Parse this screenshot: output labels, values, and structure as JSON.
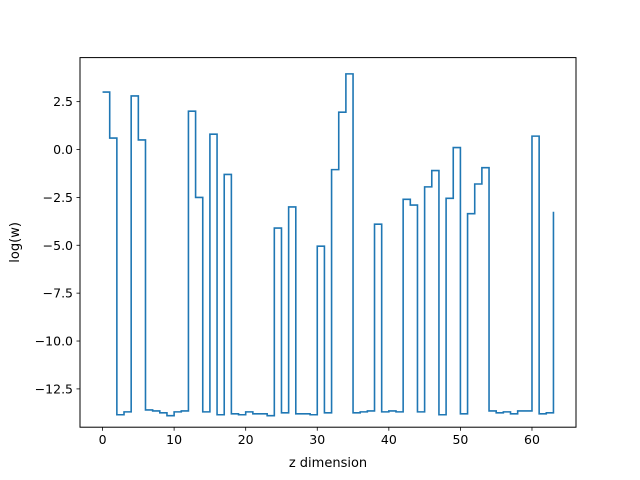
{
  "chart_data": {
    "type": "line",
    "drawstyle": "steps-post",
    "xlabel": "z dimension",
    "ylabel": "log(w)",
    "xlim": [
      -3.15,
      66.15
    ],
    "ylim": [
      -14.5,
      4.8
    ],
    "xticks": [
      0,
      10,
      20,
      30,
      40,
      50,
      60
    ],
    "xtick_labels": [
      "0",
      "10",
      "20",
      "30",
      "40",
      "50",
      "60"
    ],
    "yticks": [
      -12.5,
      -10.0,
      -7.5,
      -5.0,
      -2.5,
      0.0,
      2.5
    ],
    "ytick_labels": [
      "−12.5",
      "−10.0",
      "−7.5",
      "−5.0",
      "−2.5",
      "0.0",
      "2.5"
    ],
    "grid": false,
    "color": "#1f77b4",
    "series": [
      {
        "x": [
          0,
          1,
          2,
          3,
          4,
          5,
          6,
          7,
          8,
          9,
          10,
          11,
          12,
          13,
          14,
          15,
          16,
          17,
          18,
          19,
          20,
          21,
          22,
          23,
          24,
          25,
          26,
          27,
          28,
          29,
          30,
          31,
          32,
          33,
          34,
          35,
          36,
          37,
          38,
          39,
          40,
          41,
          42,
          43,
          44,
          45,
          46,
          47,
          48,
          49,
          50,
          51,
          52,
          53,
          54,
          55,
          56,
          57,
          58,
          59,
          60,
          61,
          62,
          63
        ],
        "y": [
          3.0,
          0.6,
          -13.85,
          -13.7,
          2.8,
          0.5,
          -13.6,
          -13.65,
          -13.75,
          -13.9,
          -13.7,
          -13.65,
          2.0,
          -2.5,
          -13.7,
          0.8,
          -13.85,
          -1.3,
          -13.8,
          -13.85,
          -13.7,
          -13.8,
          -13.8,
          -13.9,
          -4.1,
          -13.75,
          -3.0,
          -13.8,
          -13.8,
          -13.85,
          -5.05,
          -13.75,
          -1.05,
          1.95,
          3.95,
          -13.75,
          -13.7,
          -13.65,
          -3.9,
          -13.7,
          -13.65,
          -13.7,
          -2.6,
          -2.9,
          -13.7,
          -1.95,
          -1.1,
          -13.85,
          -2.55,
          0.1,
          -13.8,
          -3.35,
          -1.8,
          -0.95,
          -13.65,
          -13.75,
          -13.7,
          -13.8,
          -13.65,
          -13.65,
          0.7,
          -13.8,
          -13.75,
          -3.25
        ]
      }
    ]
  }
}
